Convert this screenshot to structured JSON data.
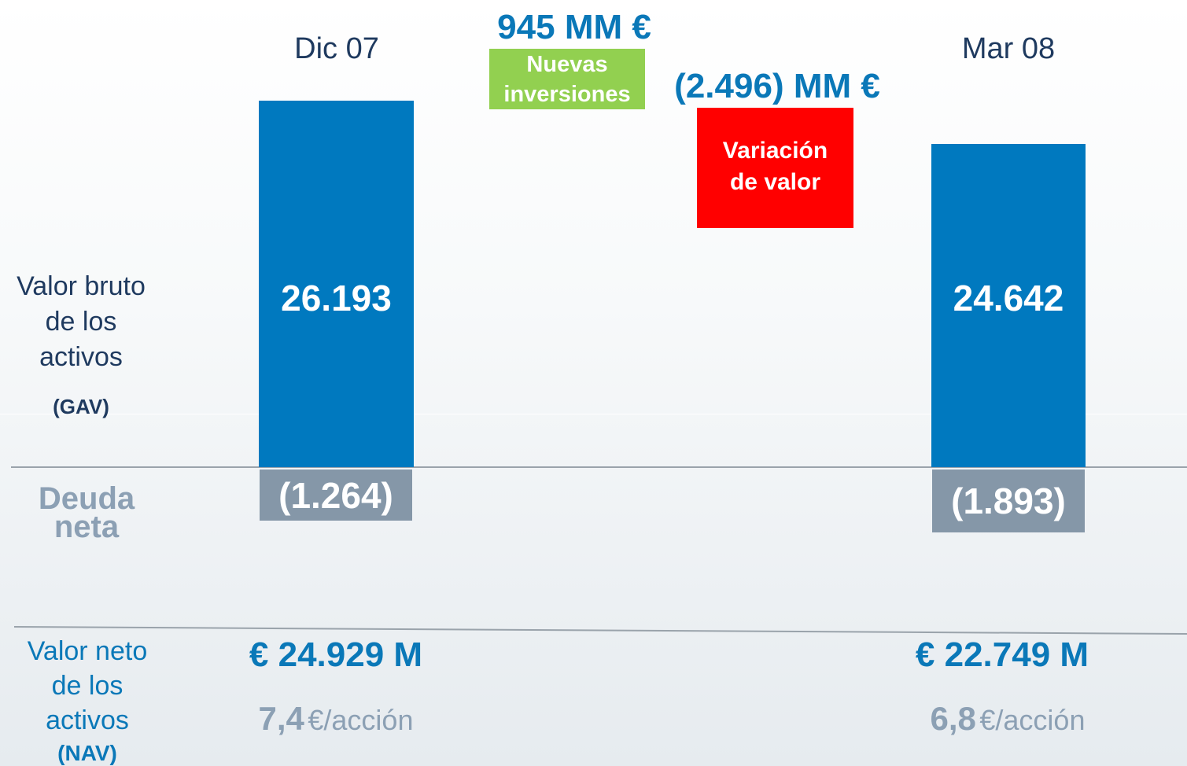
{
  "periods": {
    "start": "Dic 07",
    "end": "Mar 08"
  },
  "changes": {
    "investments": {
      "amount": "945 MM €",
      "label": "Nuevas inversiones"
    },
    "valuation": {
      "amount": "(2.496) MM €",
      "label": "Variación de valor"
    }
  },
  "gav": {
    "label": "Valor bruto de los activos",
    "abbr": "(GAV)",
    "start": "26.193",
    "end": "24.642"
  },
  "debt": {
    "label": "Deuda neta",
    "start": "(1.264)",
    "end": "(1.893)"
  },
  "nav": {
    "label": "Valor neto de los activos",
    "abbr": "(NAV)",
    "start": "€ 24.929 M",
    "end": "€ 22.749 M",
    "per_share_start": "7,4",
    "per_share_end": "6,8",
    "per_share_unit": "€/acción"
  }
}
